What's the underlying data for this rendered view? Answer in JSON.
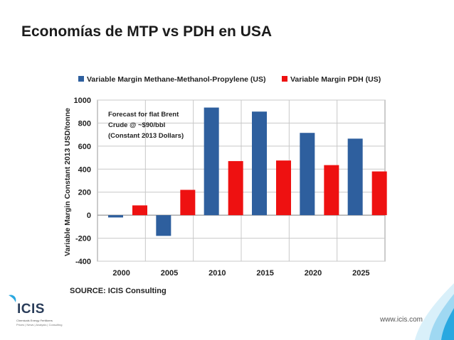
{
  "slide": {
    "title": "Economías de MTP vs PDH en USA",
    "footer_url": "www.icis.com"
  },
  "logo": {
    "name": "ICIS",
    "tagline": "Chemicals  Energy  Fertilizers",
    "services": "Prices | News | Analysis | Consulting"
  },
  "colors": {
    "series_mtp": "#2e5f9e",
    "series_pdh": "#ee1111",
    "logo_blue": "#29a8e0",
    "corner_light": "#bfe6f7"
  },
  "chart_data": {
    "type": "bar",
    "categories": [
      "2000",
      "2005",
      "2010",
      "2015",
      "2020",
      "2025"
    ],
    "series": [
      {
        "name": "Variable Margin Methane-Methanol-Propylene (US)",
        "values": [
          -20,
          -180,
          935,
          900,
          715,
          665
        ]
      },
      {
        "name": "Variable Margin PDH (US)",
        "values": [
          85,
          220,
          470,
          475,
          435,
          380
        ]
      }
    ],
    "ylabel": "Variable Margin Constant 2013 USD/tonne",
    "xlabel": "",
    "ylim": [
      -400,
      1000
    ],
    "yticks": [
      -400,
      -200,
      0,
      200,
      400,
      600,
      800,
      1000
    ],
    "grid": true,
    "legend_position": "top",
    "annotation": [
      "Forecast for flat Brent",
      "Crude @ ~$90/bbl",
      "(Constant 2013 Dollars)"
    ],
    "source": "SOURCE: ICIS Consulting"
  }
}
